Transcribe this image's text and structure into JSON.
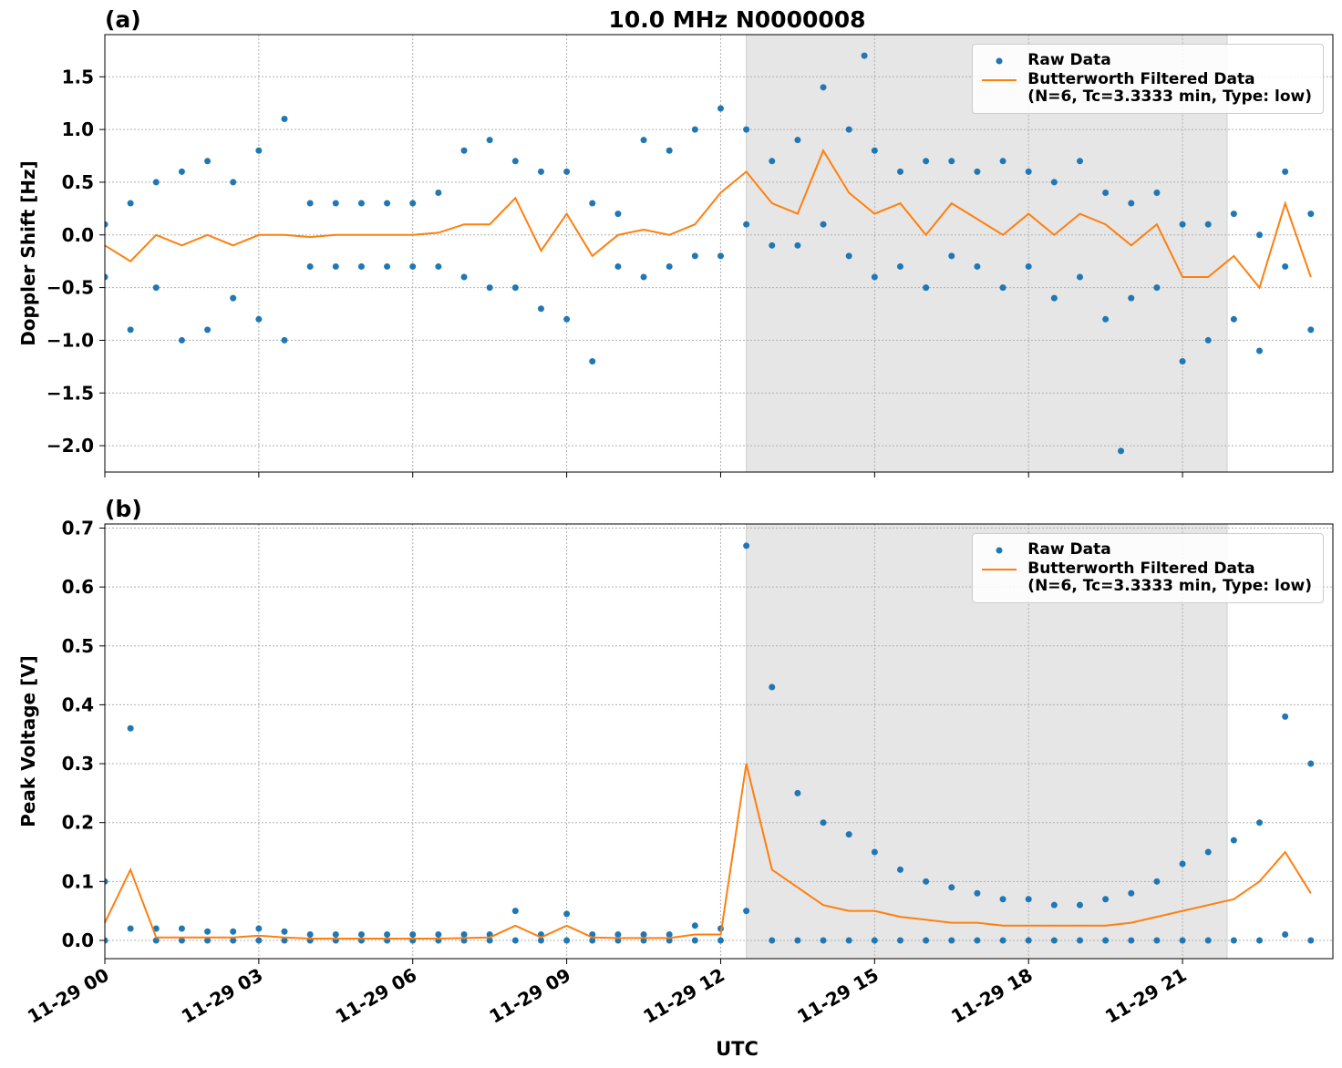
{
  "chart_data": [
    {
      "type": "scatter",
      "panel_label": "(a)",
      "title": "10.0 MHz N0000008",
      "ylabel": "Doppler Shift [Hz]",
      "xlim": [
        0,
        23.93
      ],
      "ylim": [
        -2.25,
        1.9
      ],
      "shaded_span": [
        12.5,
        21.87
      ],
      "grid": true,
      "legend": "upper right",
      "xticks": [
        0,
        3,
        6,
        9,
        12,
        15,
        18,
        21
      ],
      "yticks": [
        {
          "value": -2.0,
          "label": "−2.0"
        },
        {
          "value": -1.5,
          "label": "−1.5"
        },
        {
          "value": -1.0,
          "label": "−1.0"
        },
        {
          "value": -0.5,
          "label": "−0.5"
        },
        {
          "value": 0,
          "label": "0.0"
        },
        {
          "value": 0.5,
          "label": "0.5"
        },
        {
          "value": 1.0,
          "label": "1.0"
        },
        {
          "value": 1.5,
          "label": "1.5"
        }
      ],
      "series": [
        {
          "name": "Raw Data",
          "kind": "scatter",
          "color": "#1f77b4",
          "x": [
            0,
            0,
            0.5,
            0.5,
            1,
            1,
            1.5,
            1.5,
            2,
            2,
            2.5,
            2.5,
            3,
            3,
            3.5,
            3.5,
            4,
            4,
            4.5,
            4.5,
            5,
            5,
            5.5,
            5.5,
            6,
            6,
            6.5,
            6.5,
            7,
            7,
            7.5,
            7.5,
            8,
            8,
            8.5,
            8.5,
            9,
            9,
            9.5,
            9.5,
            10,
            10,
            10.5,
            10.5,
            11,
            11,
            11.5,
            11.5,
            12,
            12,
            12.5,
            12.5,
            13,
            13,
            13.5,
            13.5,
            14,
            14,
            14.5,
            14.5,
            15,
            15,
            15.5,
            15.5,
            16,
            16,
            16.5,
            16.5,
            17,
            17,
            17.5,
            17.5,
            18,
            18,
            18.5,
            18.5,
            19,
            19,
            19.5,
            19.5,
            20,
            20,
            20.5,
            20.5,
            21,
            21,
            21.5,
            21.5,
            22,
            22,
            22.5,
            22.5,
            23,
            23,
            23.5,
            23.5,
            14.8,
            19.8
          ],
          "values": [
            0.1,
            -0.4,
            0.3,
            -0.9,
            0.5,
            -0.5,
            0.6,
            -1.0,
            0.7,
            -0.9,
            0.5,
            -0.6,
            0.8,
            -0.8,
            1.1,
            -1.0,
            0.3,
            -0.3,
            0.3,
            -0.3,
            0.3,
            -0.3,
            0.3,
            -0.3,
            0.3,
            -0.3,
            0.4,
            -0.3,
            0.8,
            -0.4,
            0.9,
            -0.5,
            0.7,
            -0.5,
            0.6,
            -0.7,
            0.6,
            -0.8,
            0.3,
            -1.2,
            0.2,
            -0.3,
            0.9,
            -0.4,
            0.8,
            -0.3,
            1.0,
            -0.2,
            1.2,
            -0.2,
            1.0,
            0.1,
            0.7,
            -0.1,
            0.9,
            -0.1,
            1.4,
            0.1,
            1.0,
            -0.2,
            0.8,
            -0.4,
            0.6,
            -0.3,
            0.7,
            -0.5,
            0.7,
            -0.2,
            0.6,
            -0.3,
            0.7,
            -0.5,
            0.6,
            -0.3,
            0.5,
            -0.6,
            0.7,
            -0.4,
            0.4,
            -0.8,
            0.3,
            -0.6,
            0.4,
            -0.5,
            0.1,
            -1.2,
            0.1,
            -1.0,
            0.2,
            -0.8,
            0.0,
            -1.1,
            0.6,
            -0.3,
            0.2,
            -0.9,
            1.7,
            -2.05
          ]
        },
        {
          "name": "Butterworth Filtered Data\n(N=6, Tc=3.3333 min, Type: low)",
          "kind": "line",
          "color": "#ff7f0e",
          "x": [
            0,
            0.5,
            1,
            1.5,
            2,
            2.5,
            3,
            3.5,
            4,
            4.5,
            5,
            5.5,
            6,
            6.5,
            7,
            7.5,
            8,
            8.5,
            9,
            9.5,
            10,
            10.5,
            11,
            11.5,
            12,
            12.5,
            13,
            13.5,
            14,
            14.5,
            15,
            15.5,
            16,
            16.5,
            17,
            17.5,
            18,
            18.5,
            19,
            19.5,
            20,
            20.5,
            21,
            21.5,
            22,
            22.5,
            23,
            23.5
          ],
          "values": [
            -0.1,
            -0.25,
            0.0,
            -0.1,
            0.0,
            -0.1,
            0.0,
            0.0,
            -0.02,
            0,
            0,
            0,
            0,
            0.02,
            0.1,
            0.1,
            0.35,
            -0.15,
            0.2,
            -0.2,
            0,
            0.05,
            0,
            0.1,
            0.4,
            0.6,
            0.3,
            0.2,
            0.8,
            0.4,
            0.2,
            0.3,
            0,
            0.3,
            0.15,
            0,
            0.2,
            0,
            0.2,
            0.1,
            -0.1,
            0.1,
            -0.4,
            -0.4,
            -0.2,
            -0.5,
            0.3,
            -0.4
          ]
        }
      ]
    },
    {
      "type": "scatter",
      "panel_label": "(b)",
      "ylabel": "Peak Voltage [V]",
      "xlabel": "UTC",
      "xlim": [
        0,
        23.93
      ],
      "ylim": [
        -0.031,
        0.707
      ],
      "shaded_span": [
        12.5,
        21.87
      ],
      "grid": true,
      "legend": "upper right",
      "xticks": [
        {
          "value": 0,
          "label": "11-29 00"
        },
        {
          "value": 3,
          "label": "11-29 03"
        },
        {
          "value": 6,
          "label": "11-29 06"
        },
        {
          "value": 9,
          "label": "11-29 09"
        },
        {
          "value": 12,
          "label": "11-29 12"
        },
        {
          "value": 15,
          "label": "11-29 15"
        },
        {
          "value": 18,
          "label": "11-29 18"
        },
        {
          "value": 21,
          "label": "11-29 21"
        }
      ],
      "yticks": [
        {
          "value": 0,
          "label": "0.0"
        },
        0.1,
        0.2,
        0.3,
        0.4,
        0.5,
        0.6,
        0.7
      ],
      "series": [
        {
          "name": "Raw Data",
          "kind": "scatter",
          "color": "#1f77b4",
          "x": [
            0,
            0,
            0.5,
            0.5,
            1,
            1,
            1.5,
            1.5,
            2,
            2,
            2.5,
            2.5,
            3,
            3,
            3.5,
            3.5,
            4,
            4,
            4.5,
            4.5,
            5,
            5,
            5.5,
            5.5,
            6,
            6,
            6.5,
            6.5,
            7,
            7,
            7.5,
            7.5,
            8,
            8,
            8.5,
            8.5,
            9,
            9,
            9.5,
            9.5,
            10,
            10,
            10.5,
            10.5,
            11,
            11,
            11.5,
            11.5,
            12,
            12,
            12.5,
            12.5,
            13,
            13,
            13.5,
            13.5,
            14,
            14,
            14.5,
            14.5,
            15,
            15,
            15.5,
            15.5,
            16,
            16,
            16.5,
            16.5,
            17,
            17,
            17.5,
            17.5,
            18,
            18,
            18.5,
            18.5,
            19,
            19,
            19.5,
            19.5,
            20,
            20,
            20.5,
            20.5,
            21,
            21,
            21.5,
            21.5,
            22,
            22,
            22.5,
            22.5,
            23,
            23,
            23.5,
            23.5
          ],
          "values": [
            0.1,
            0.0,
            0.36,
            0.02,
            0.02,
            0,
            0.02,
            0,
            0.015,
            0,
            0.015,
            0,
            0.02,
            0,
            0.015,
            0,
            0.01,
            0,
            0.01,
            0,
            0.01,
            0,
            0.01,
            0,
            0.01,
            0,
            0.01,
            0,
            0.01,
            0,
            0.01,
            0,
            0.05,
            0,
            0.01,
            0,
            0.045,
            0,
            0.01,
            0,
            0.01,
            0,
            0.01,
            0,
            0.01,
            0,
            0.025,
            0,
            0.02,
            0,
            0.67,
            0.05,
            0.43,
            0,
            0.25,
            0,
            0.2,
            0,
            0.18,
            0,
            0.15,
            0,
            0.12,
            0,
            0.1,
            0,
            0.09,
            0,
            0.08,
            0,
            0.07,
            0,
            0.07,
            0,
            0.06,
            0,
            0.06,
            0,
            0.07,
            0,
            0.08,
            0,
            0.1,
            0,
            0.13,
            0,
            0.15,
            0,
            0.17,
            0,
            0.2,
            0,
            0.38,
            0.01,
            0.3,
            0
          ]
        },
        {
          "name": "Butterworth Filtered Data\n(N=6, Tc=3.3333 min, Type: low)",
          "kind": "line",
          "color": "#ff7f0e",
          "x": [
            0,
            0.5,
            1,
            1.5,
            2,
            2.5,
            3,
            3.5,
            4,
            4.5,
            5,
            5.5,
            6,
            6.5,
            7,
            7.5,
            8,
            8.5,
            9,
            9.5,
            10,
            10.5,
            11,
            11.5,
            12,
            12.5,
            13,
            13.5,
            14,
            14.5,
            15,
            15.5,
            16,
            16.5,
            17,
            17.5,
            18,
            18.5,
            19,
            19.5,
            20,
            20.5,
            21,
            21.5,
            22,
            22.5,
            23,
            23.5
          ],
          "values": [
            0.03,
            0.12,
            0.005,
            0.005,
            0.005,
            0.005,
            0.008,
            0.005,
            0.003,
            0.003,
            0.003,
            0.003,
            0.003,
            0.003,
            0.004,
            0.005,
            0.025,
            0.005,
            0.025,
            0.005,
            0.004,
            0.004,
            0.004,
            0.01,
            0.01,
            0.3,
            0.12,
            0.09,
            0.06,
            0.05,
            0.05,
            0.04,
            0.035,
            0.03,
            0.03,
            0.025,
            0.025,
            0.025,
            0.025,
            0.025,
            0.03,
            0.04,
            0.05,
            0.06,
            0.07,
            0.1,
            0.15,
            0.08
          ]
        }
      ]
    }
  ]
}
